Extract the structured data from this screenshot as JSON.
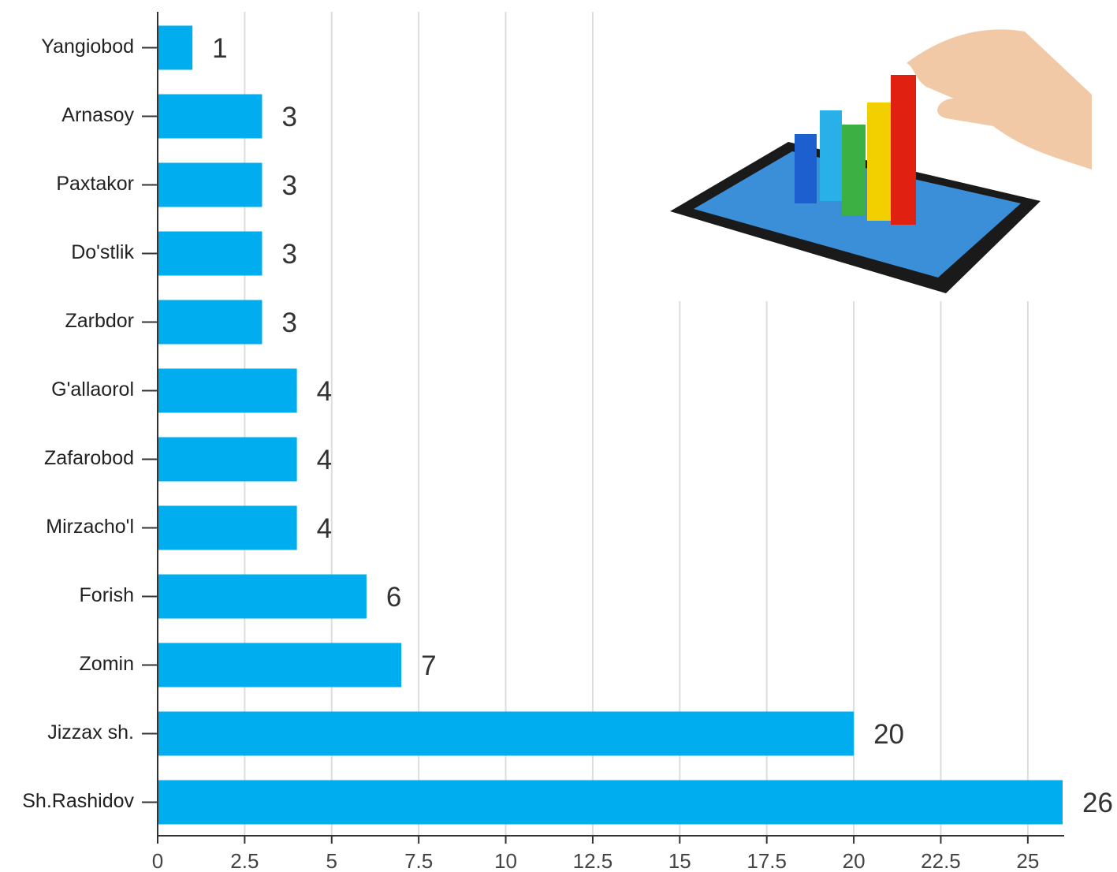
{
  "chart_data": {
    "type": "bar",
    "orientation": "horizontal",
    "categories": [
      "Yangiobod",
      "Arnasoy",
      "Paxtakor",
      "Do'stlik",
      "Zarbdor",
      "G'allaorol",
      "Zafarobod",
      "Mirzacho'l",
      "Forish",
      "Zomin",
      "Jizzax sh.",
      "Sh.Rashidov"
    ],
    "values": [
      1,
      3,
      3,
      3,
      3,
      4,
      4,
      4,
      6,
      7,
      20,
      26
    ],
    "color": "#00adef",
    "xlim": [
      0,
      26
    ],
    "xticks": [
      0,
      2.5,
      5,
      7.5,
      10,
      12.5,
      15,
      17.5,
      20,
      22.5,
      25
    ],
    "grid": true
  }
}
